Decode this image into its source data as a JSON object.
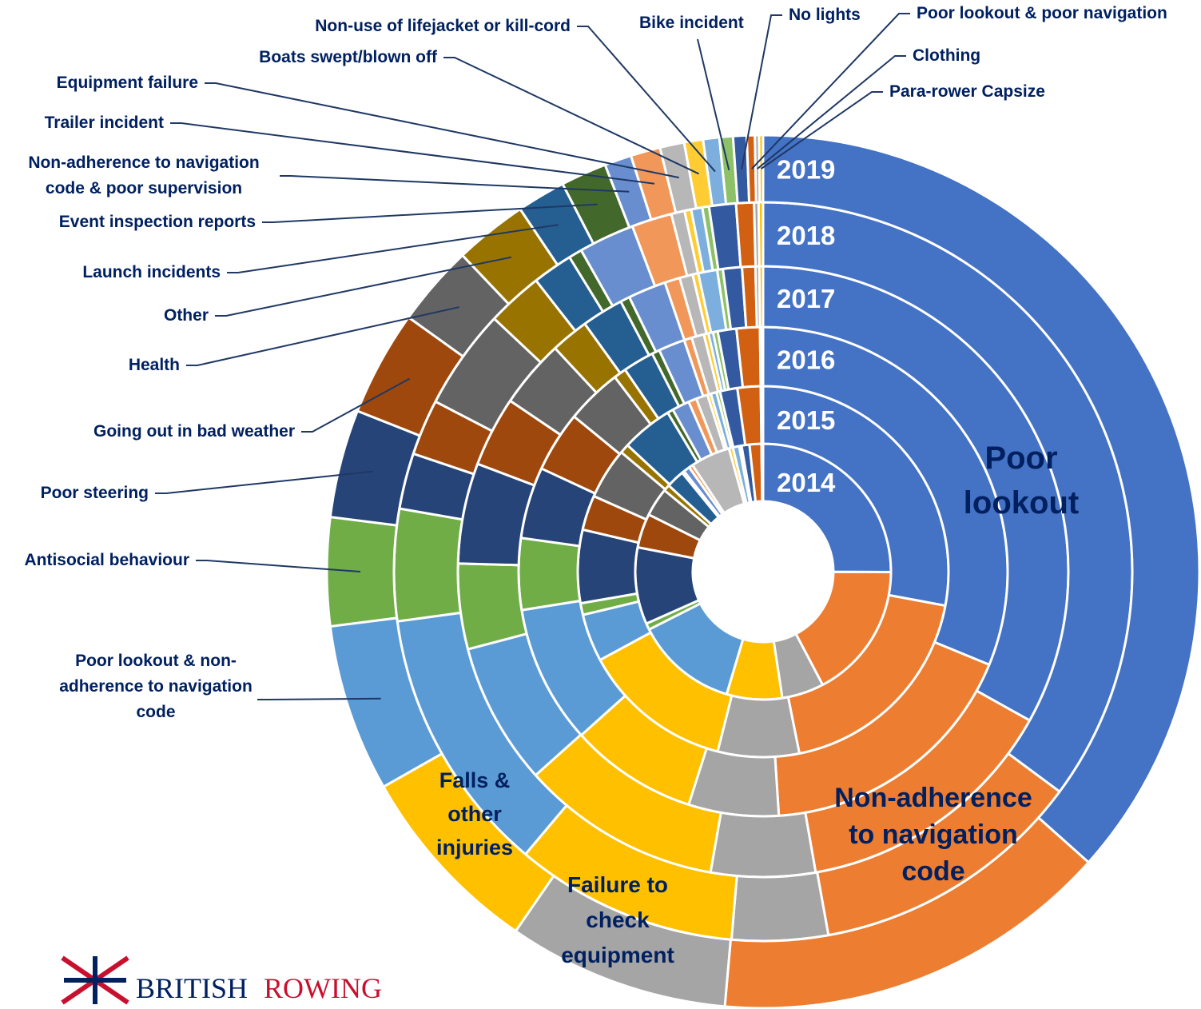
{
  "chart_data": {
    "type": "multi-donut",
    "categories": [
      "Poor lookout",
      "Non-adherence to navigation code",
      "Failure to check equipment",
      "Falls & other injuries",
      "Poor lookout & non-adherence to navigation code",
      "Antisocial behaviour",
      "Poor steering",
      "Going out in bad weather",
      "Health",
      "Other",
      "Launch incidents",
      "Event inspection reports",
      "Non-adherence to navigation code & poor supervision",
      "Trailer incident",
      "Equipment failure",
      "Boats swept/blown off",
      "Non-use of lifejacket or kill-cord",
      "Bike incident",
      "No lights",
      "Poor lookout & poor navigation",
      "Clothing",
      "Para-rower Capsize"
    ],
    "colors": [
      "#4472c4",
      "#ed7d31",
      "#a5a5a5",
      "#ffc000",
      "#5b9bd5",
      "#70ad47",
      "#264478",
      "#9e480e",
      "#636363",
      "#997300",
      "#255e91",
      "#43682b",
      "#698ed0",
      "#f1975a",
      "#b7b7b7",
      "#ffcd33",
      "#7cafdd",
      "#8cc168",
      "#335aa1",
      "#d26012",
      "#a5a5a5",
      "#ffc000"
    ],
    "series": [
      {
        "name": "2014",
        "values": [
          25,
          17.2,
          5.3,
          7,
          12.9,
          0.8,
          9.7,
          4.3,
          3.6,
          0.8,
          2.3,
          0.3,
          0.8,
          0.5,
          5,
          0.5,
          0.8,
          0.3,
          1,
          1.5,
          0.1,
          0.1
        ]
      },
      {
        "name": "2015",
        "values": [
          27.6,
          18.7,
          7,
          13,
          4.1,
          1,
          6.3,
          3,
          4.4,
          0.8,
          4.4,
          0.5,
          1.5,
          0.7,
          1,
          0.3,
          0.5,
          0.3,
          1.5,
          2,
          0.1,
          0.1
        ]
      },
      {
        "name": "2016",
        "values": [
          30.4,
          17.3,
          5.8,
          8.2,
          8.9,
          4.6,
          4.6,
          3.9,
          3.6,
          0.8,
          2,
          0.5,
          1.7,
          0.5,
          0.8,
          0.3,
          0.3,
          0.3,
          1.2,
          1.5,
          0.1,
          0.1
        ]
      },
      {
        "name": "2017",
        "values": [
          33,
          14.1,
          5.5,
          10.6,
          7.5,
          4.5,
          5.3,
          3.7,
          3.6,
          2,
          2.2,
          0.5,
          2,
          0.8,
          0.7,
          0.3,
          1,
          0.3,
          1,
          0.7,
          0.2,
          0.2
        ]
      },
      {
        "name": "2018",
        "values": [
          36,
          12.3,
          4.3,
          10,
          12,
          5,
          2.5,
          2.5,
          4.5,
          2.5,
          1.8,
          0.6,
          2.5,
          1.8,
          0.6,
          0.3,
          0.5,
          0.3,
          1.2,
          0.8,
          0.2,
          0.2
        ]
      },
      {
        "name": "2019",
        "values": [
          36.6,
          14.8,
          8.2,
          7.2,
          6.2,
          4,
          4,
          3.9,
          3,
          2.7,
          1.8,
          1.7,
          1,
          1.1,
          0.9,
          0.7,
          0.6,
          0.5,
          0.5,
          0.3,
          0.15,
          0.15
        ]
      }
    ],
    "logo": {
      "part1": "BRITISH",
      "part2": "ROWING"
    }
  }
}
